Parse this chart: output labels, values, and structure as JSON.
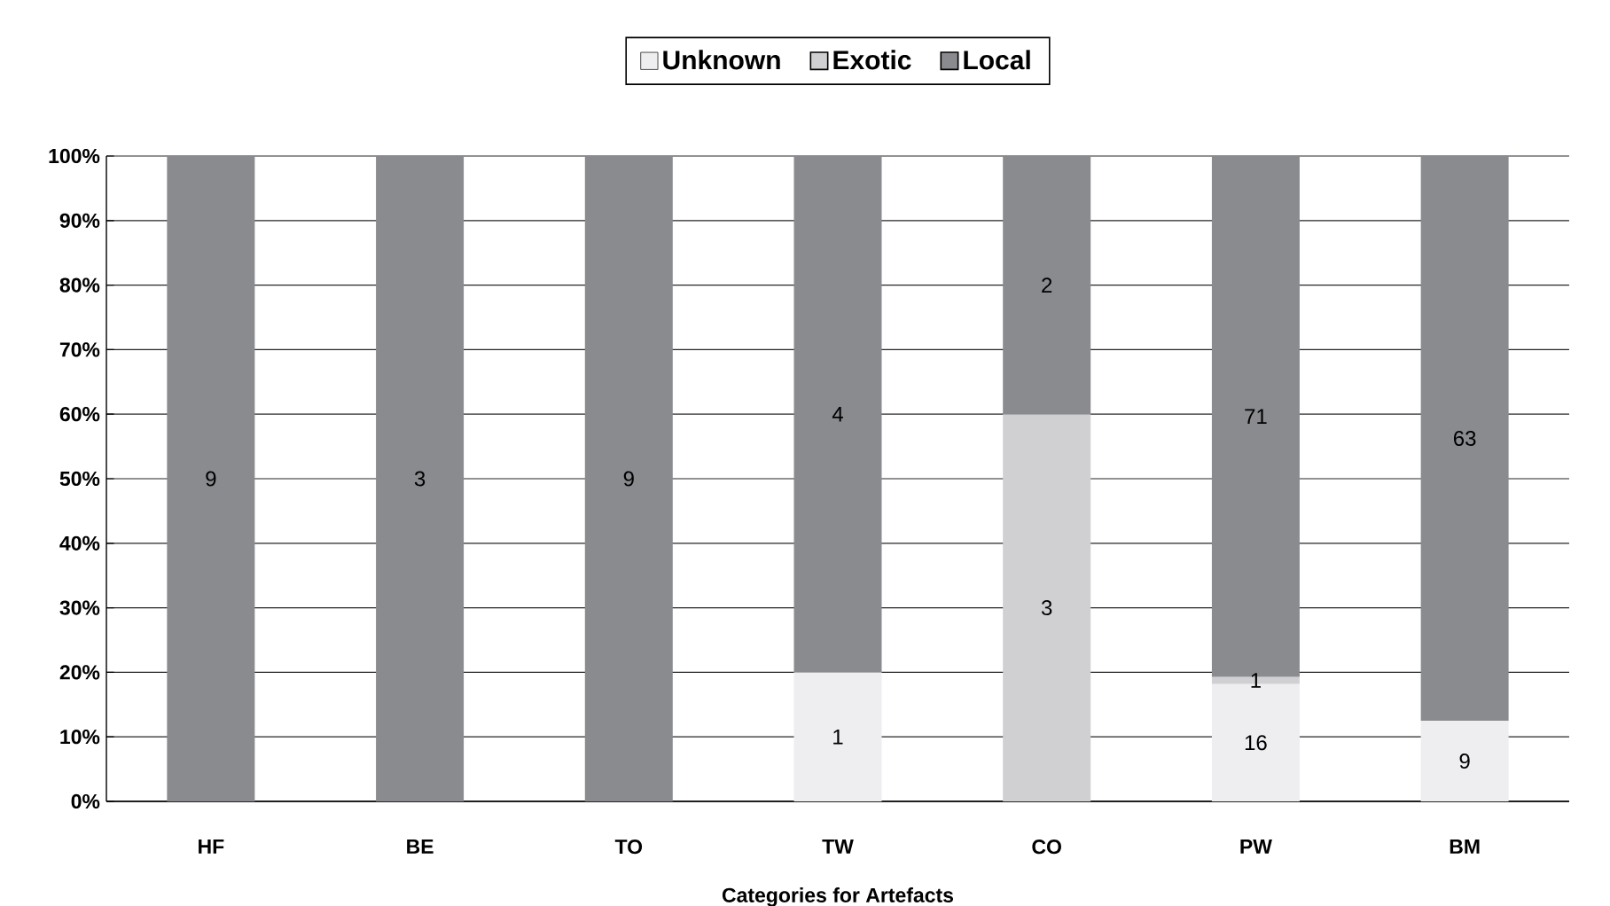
{
  "chart_data": {
    "type": "bar",
    "stacked": true,
    "xlabel": "Categories for Artefacts",
    "categories": [
      "HF",
      "BE",
      "TO",
      "TW",
      "CO",
      "PW",
      "BM"
    ],
    "series": [
      {
        "name": "Unknown",
        "color": "#eeeef0",
        "values": [
          null,
          null,
          null,
          20,
          null,
          18.2,
          12.5
        ]
      },
      {
        "name": "Exotic",
        "color": "#d0d0d2",
        "values": [
          null,
          null,
          null,
          null,
          60,
          1.1,
          null
        ]
      },
      {
        "name": "Local",
        "color": "#8a8b8f",
        "values": [
          100,
          100,
          100,
          80,
          40,
          80.7,
          87.5
        ]
      }
    ],
    "annotations": [
      "9",
      "3",
      "9",
      "1",
      "4",
      "3",
      "2",
      "16",
      "1",
      "71",
      "9",
      "63"
    ],
    "ylim": [
      0,
      100
    ],
    "yticks": [
      {
        "value": 0,
        "label": "0%"
      },
      {
        "value": 10,
        "label": "10%"
      },
      {
        "value": 20,
        "label": "20%"
      },
      {
        "value": 30,
        "label": "30%"
      },
      {
        "value": 40,
        "label": "40%"
      },
      {
        "value": 50,
        "label": "50%"
      },
      {
        "value": 60,
        "label": "60%"
      },
      {
        "value": 70,
        "label": "70%"
      },
      {
        "value": 80,
        "label": "80%"
      },
      {
        "value": 90,
        "label": "90%"
      },
      {
        "value": 100,
        "label": "100%"
      }
    ],
    "grid": "y",
    "legend": "top"
  }
}
